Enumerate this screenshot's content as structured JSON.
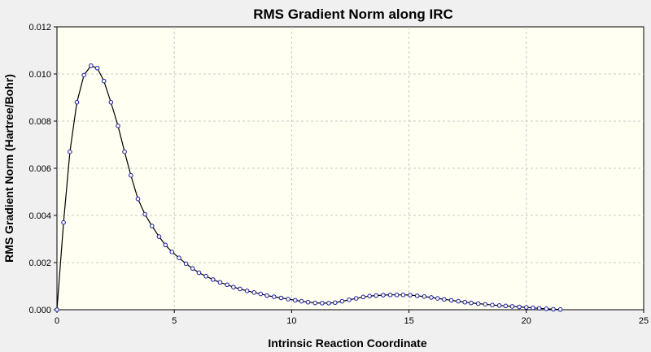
{
  "chart_data": {
    "type": "line",
    "title": "RMS Gradient Norm along IRC",
    "xlabel": "Intrinsic Reaction Coordinate",
    "ylabel": "RMS Gradient Norm (Hartree/Bohr)",
    "xlim": [
      0,
      25
    ],
    "ylim": [
      0,
      0.012
    ],
    "x_ticks": [
      "0",
      "5",
      "10",
      "15",
      "20",
      "25"
    ],
    "y_ticks": [
      "0.000",
      "0.002",
      "0.004",
      "0.006",
      "0.008",
      "0.010",
      "0.012"
    ],
    "grid": true,
    "plot_background": "#fffff2",
    "line_color": "#000000",
    "marker_color": "#1a1a9a",
    "series": [
      {
        "x": [
          0.0,
          0.28,
          0.55,
          0.85,
          1.15,
          1.45,
          1.72,
          2.0,
          2.3,
          2.6,
          2.88,
          3.15,
          3.45,
          3.75,
          4.05,
          4.35,
          4.62,
          4.9,
          5.2,
          5.5,
          5.78,
          6.05,
          6.35,
          6.65,
          6.95,
          7.25,
          7.52,
          7.8,
          8.1,
          8.4,
          8.68,
          8.95,
          9.25,
          9.55,
          9.85,
          10.15,
          10.42,
          10.7,
          11.0,
          11.3,
          11.58,
          11.85,
          12.15,
          12.45,
          12.75,
          13.05,
          13.32,
          13.6,
          13.9,
          14.2,
          14.48,
          14.75,
          15.05,
          15.35,
          15.65,
          15.95,
          16.22,
          16.5,
          16.8,
          17.1,
          17.38,
          17.65,
          17.95,
          18.25,
          18.55,
          18.85,
          19.12,
          19.4,
          19.7,
          20.0,
          20.28,
          20.55,
          20.85,
          21.15,
          21.45
        ],
        "y": [
          0.0,
          0.0037,
          0.0067,
          0.0088,
          0.00995,
          0.01035,
          0.01025,
          0.0097,
          0.0088,
          0.0078,
          0.0067,
          0.0057,
          0.0047,
          0.00405,
          0.00355,
          0.0031,
          0.00275,
          0.00245,
          0.0022,
          0.00195,
          0.00175,
          0.00157,
          0.00142,
          0.00128,
          0.00116,
          0.00106,
          0.00096,
          0.00088,
          0.0008,
          0.00073,
          0.00067,
          0.0006,
          0.00055,
          0.0005,
          0.00045,
          0.0004,
          0.00036,
          0.00032,
          0.00029,
          0.00028,
          0.00028,
          0.0003,
          0.00036,
          0.00042,
          0.00048,
          0.00054,
          0.00058,
          0.0006,
          0.00062,
          0.00063,
          0.00063,
          0.00063,
          0.00062,
          0.00059,
          0.00056,
          0.00052,
          0.00048,
          0.00044,
          0.0004,
          0.00036,
          0.00032,
          0.00029,
          0.00026,
          0.00023,
          0.0002,
          0.00018,
          0.00016,
          0.00014,
          0.00012,
          0.0001,
          8e-05,
          6e-05,
          4e-05,
          2e-05,
          1e-05
        ]
      }
    ]
  }
}
